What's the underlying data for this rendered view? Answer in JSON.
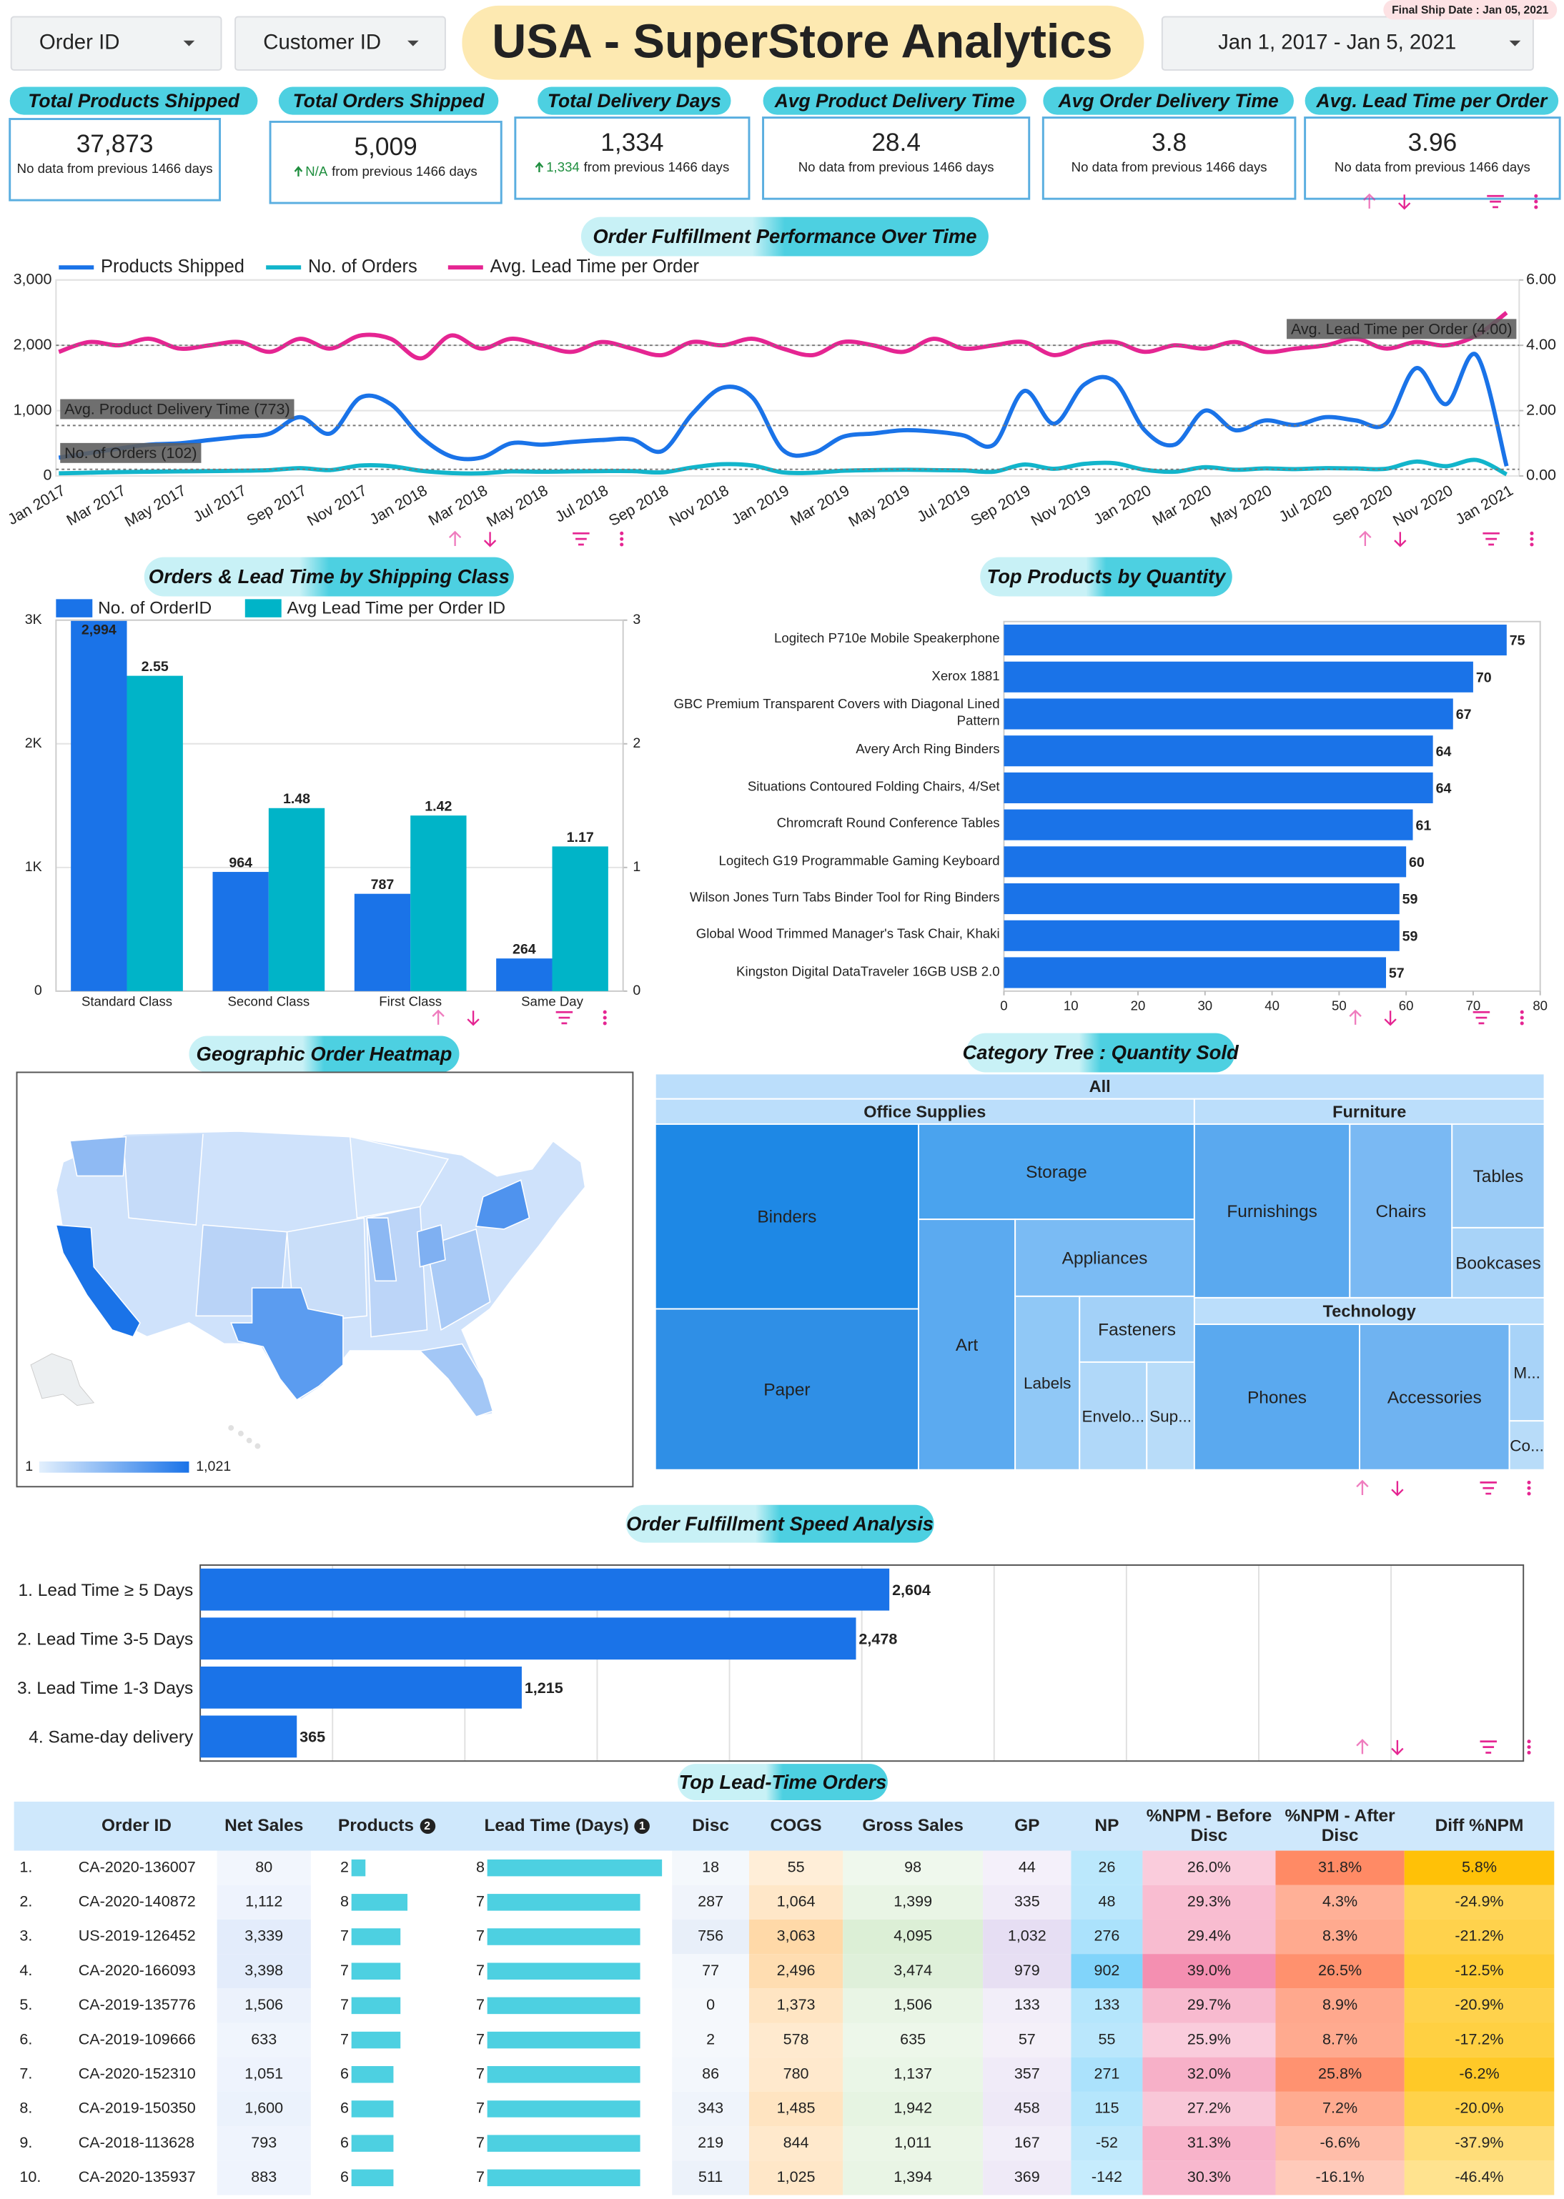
{
  "header": {
    "filters": [
      "Order ID",
      "Customer ID"
    ],
    "title": "USA - SuperStore Analytics",
    "date_range": "Jan 1, 2017 - Jan 5, 2021",
    "final_ship_date": "Final Ship Date : Jan 05, 2021"
  },
  "kpis": [
    {
      "title": "Total Products Shipped",
      "value": "37,873",
      "comparison": "No data from previous 1466 days"
    },
    {
      "title": "Total Orders Shipped",
      "value": "5,009",
      "delta": "N/A",
      "comparison": "from previous 1466 days"
    },
    {
      "title": "Total Delivery Days",
      "value": "1,334",
      "delta": "1,334",
      "comparison": "from previous 1466 days"
    },
    {
      "title": "Avg Product Delivery Time",
      "value": "28.4",
      "comparison": "No data from previous 1466 days"
    },
    {
      "title": "Avg Order Delivery Time",
      "value": "3.8",
      "comparison": "No data from previous 1466 days"
    },
    {
      "title": "Avg. Lead Time per Order",
      "value": "3.96",
      "comparison": "No data from previous 1466 days"
    }
  ],
  "performance_chart": {
    "type": "line",
    "title": "Order Fulfillment Performance Over Time",
    "x": [
      "Jan 2017",
      null,
      "Mar 2017",
      null,
      "May 2017",
      null,
      "Jul 2017",
      null,
      "Sep 2017",
      null,
      "Nov 2017",
      null,
      "Jan 2018",
      null,
      "Mar 2018",
      null,
      "May 2018",
      null,
      "Jul 2018",
      null,
      "Sep 2018",
      null,
      "Nov 2018",
      null,
      "Jan 2019",
      null,
      "Mar 2019",
      null,
      "May 2019",
      null,
      "Jul 2019",
      null,
      "Sep 2019",
      null,
      "Nov 2019",
      null,
      "Jan 2020",
      null,
      "Mar 2020",
      null,
      "May 2020",
      null,
      "Jul 2020",
      null,
      "Sep 2020",
      null,
      "Nov 2020",
      null,
      "Jan 2021"
    ],
    "series": [
      {
        "name": "Products Shipped",
        "color": "#1a73e8",
        "values": [
          280,
          350,
          420,
          480,
          500,
          550,
          600,
          650,
          900,
          650,
          1200,
          1100,
          600,
          300,
          280,
          500,
          480,
          520,
          550,
          560,
          380,
          950,
          1350,
          1200,
          400,
          350,
          600,
          650,
          700,
          680,
          620,
          480,
          1300,
          800,
          1400,
          1450,
          700,
          480,
          1000,
          700,
          850,
          780,
          900,
          850,
          800,
          1650,
          1100,
          1850,
          150
        ]
      },
      {
        "name": "No. of Orders",
        "color": "#12b5cb",
        "values": [
          40,
          50,
          60,
          65,
          70,
          75,
          80,
          90,
          120,
          90,
          160,
          150,
          80,
          45,
          40,
          70,
          65,
          70,
          75,
          75,
          55,
          130,
          180,
          160,
          55,
          50,
          80,
          90,
          95,
          90,
          85,
          65,
          175,
          110,
          185,
          195,
          95,
          65,
          135,
          95,
          115,
          105,
          120,
          115,
          110,
          220,
          150,
          245,
          25
        ]
      },
      {
        "name": "Avg. Lead Time per Order",
        "color": "#e52592",
        "axis": "y2",
        "values": [
          3.8,
          4.1,
          4.0,
          4.2,
          3.9,
          4.0,
          4.1,
          3.8,
          4.2,
          3.9,
          4.3,
          4.2,
          3.6,
          4.3,
          3.9,
          4.2,
          4.0,
          3.8,
          4.1,
          3.9,
          3.7,
          4.1,
          4.0,
          4.2,
          3.9,
          3.7,
          4.1,
          4.0,
          3.8,
          4.2,
          3.9,
          4.0,
          4.1,
          3.7,
          4.0,
          4.1,
          3.8,
          4.0,
          3.9,
          4.1,
          3.8,
          3.9,
          4.0,
          4.2,
          3.9,
          4.1,
          4.0,
          4.3,
          5.0
        ]
      }
    ],
    "ylim": [
      0,
      3000
    ],
    "yticks": [
      0,
      {
        "value": 1000,
        "label": "1,000"
      },
      {
        "value": 2000,
        "label": "2,000"
      },
      {
        "value": 3000,
        "label": "3,000"
      }
    ],
    "y2lim": [
      0,
      6
    ],
    "y2ticks": [
      {
        "value": 0,
        "label": "0.00"
      },
      {
        "value": 2,
        "label": "2.00"
      },
      {
        "value": 4,
        "label": "4.00"
      },
      {
        "value": 6,
        "label": "6.00"
      }
    ],
    "reference_lines": [
      {
        "label": "Avg. Product Delivery Time (773)",
        "value": 773
      },
      {
        "label": "No. of Orders (102)",
        "value": 102
      },
      {
        "label": "Avg. Lead Time per Order (4.00)",
        "value": 4,
        "axis": "y2"
      }
    ],
    "grid": true
  },
  "shipping_chart": {
    "type": "bar",
    "title": "Orders & Lead Time by Shipping Class",
    "categories": [
      "Standard Class",
      "Second Class",
      "First Class",
      "Same Day"
    ],
    "series": [
      {
        "name": "No. of OrderID",
        "color": "#1a73e8",
        "values": [
          2994,
          964,
          787,
          264
        ],
        "value_labels": [
          "2,994",
          "964",
          "787",
          "264"
        ]
      },
      {
        "name": "Avg Lead Time per Order ID",
        "color": "#00b4c8",
        "axis": "y2",
        "values": [
          2.55,
          1.48,
          1.42,
          1.17
        ]
      }
    ],
    "ylim": [
      0,
      3000
    ],
    "yticks": [
      0,
      {
        "value": 1000,
        "label": "1K"
      },
      {
        "value": 2000,
        "label": "2K"
      },
      {
        "value": 3000,
        "label": "3K"
      }
    ],
    "y2lim": [
      0,
      3
    ],
    "y2ticks": [
      0,
      1,
      2,
      3
    ],
    "grid": true
  },
  "products_chart": {
    "type": "hbar",
    "title": "Top Products by Quantity",
    "categories": [
      "Logitech P710e Mobile Speakerphone",
      "Xerox 1881",
      "GBC Premium Transparent Covers with Diagonal Lined Pattern",
      "Avery Arch Ring Binders",
      "Situations Contoured Folding Chairs, 4/Set",
      "Chromcraft Round Conference Tables",
      "Logitech G19 Programmable Gaming Keyboard",
      "Wilson Jones Turn Tabs Binder Tool for Ring Binders",
      "Global Wood Trimmed Manager's Task Chair, Khaki",
      "Kingston Digital DataTraveler 16GB USB 2.0"
    ],
    "values": [
      75,
      70,
      67,
      64,
      64,
      61,
      60,
      59,
      59,
      57
    ],
    "color": "#1a73e8",
    "xlim": [
      0,
      80
    ],
    "xticks": [
      0,
      10,
      20,
      30,
      40,
      50,
      60,
      70,
      80
    ]
  },
  "map": {
    "title": "Geographic Order Heatmap",
    "legend": [
      "1",
      "1,021"
    ]
  },
  "treemap": {
    "title": "Category Tree : Quantity Sold",
    "root": "All",
    "groups": [
      {
        "name": "Office Supplies",
        "children": [
          "Binders",
          "Paper",
          "Storage",
          "Art",
          "Appliances",
          "Labels",
          "Fasteners",
          "Envelo...",
          "Sup..."
        ]
      },
      {
        "name": "Furniture",
        "children": [
          "Furnishings",
          "Chairs",
          "Tables",
          "Bookcases"
        ]
      },
      {
        "name": "Technology",
        "children": [
          "Phones",
          "Accessories",
          "M...",
          "Co..."
        ]
      }
    ]
  },
  "speed_chart": {
    "type": "hbar",
    "title": "Order Fulfillment Speed Analysis",
    "categories": [
      "1. Lead Time ≥ 5 Days",
      "2. Lead Time 3-5 Days",
      "3. Lead Time 1-3 Days",
      "4. Same-day delivery"
    ],
    "values": [
      2604,
      2478,
      1215,
      365
    ],
    "value_labels": [
      "2,604",
      "2,478",
      "1,215",
      "365"
    ],
    "color": "#1a73e8",
    "xlim": [
      0,
      5000
    ]
  },
  "table": {
    "title": "Top Lead-Time Orders",
    "columns": [
      {
        "name": "Order ID"
      },
      {
        "name": "Net Sales"
      },
      {
        "name": "Products",
        "sort": 2
      },
      {
        "name": "Lead Time (Days)",
        "sort": 1
      },
      {
        "name": "Disc"
      },
      {
        "name": "COGS"
      },
      {
        "name": "Gross Sales"
      },
      {
        "name": "GP"
      },
      {
        "name": "NP"
      },
      {
        "name": "%NPM - Before Disc"
      },
      {
        "name": "%NPM - After Disc"
      },
      {
        "name": "Diff %NPM"
      }
    ],
    "ranks": [
      "1.",
      "2.",
      "3.",
      "4.",
      "5.",
      "6.",
      "7.",
      "8.",
      "9.",
      "10."
    ],
    "rows": [
      [
        "CA-2020-136007",
        "80",
        2,
        8,
        "18",
        "55",
        "98",
        "44",
        "26",
        "26.0%",
        "31.8%",
        "5.8%"
      ],
      [
        "CA-2020-140872",
        "1,112",
        8,
        7,
        "287",
        "1,064",
        "1,399",
        "335",
        "48",
        "29.3%",
        "4.3%",
        "-24.9%"
      ],
      [
        "US-2019-126452",
        "3,339",
        7,
        7,
        "756",
        "3,063",
        "4,095",
        "1,032",
        "276",
        "29.4%",
        "8.3%",
        "-21.2%"
      ],
      [
        "CA-2020-166093",
        "3,398",
        7,
        7,
        "77",
        "2,496",
        "3,474",
        "979",
        "902",
        "39.0%",
        "26.5%",
        "-12.5%"
      ],
      [
        "CA-2019-135776",
        "1,506",
        7,
        7,
        "0",
        "1,373",
        "1,506",
        "133",
        "133",
        "29.7%",
        "8.9%",
        "-20.9%"
      ],
      [
        "CA-2019-109666",
        "633",
        7,
        7,
        "2",
        "578",
        "635",
        "57",
        "55",
        "25.9%",
        "8.7%",
        "-17.2%"
      ],
      [
        "CA-2020-152310",
        "1,051",
        6,
        7,
        "86",
        "780",
        "1,137",
        "357",
        "271",
        "32.0%",
        "25.8%",
        "-6.2%"
      ],
      [
        "CA-2019-150350",
        "1,600",
        6,
        7,
        "343",
        "1,485",
        "1,942",
        "458",
        "115",
        "27.2%",
        "7.2%",
        "-20.0%"
      ],
      [
        "CA-2018-113628",
        "793",
        6,
        7,
        "219",
        "844",
        "1,011",
        "167",
        "-52",
        "31.3%",
        "-6.6%",
        "-37.9%"
      ],
      [
        "CA-2020-135937",
        "883",
        6,
        7,
        "511",
        "1,025",
        "1,394",
        "369",
        "-142",
        "30.3%",
        "-16.1%",
        "-46.4%"
      ]
    ]
  }
}
